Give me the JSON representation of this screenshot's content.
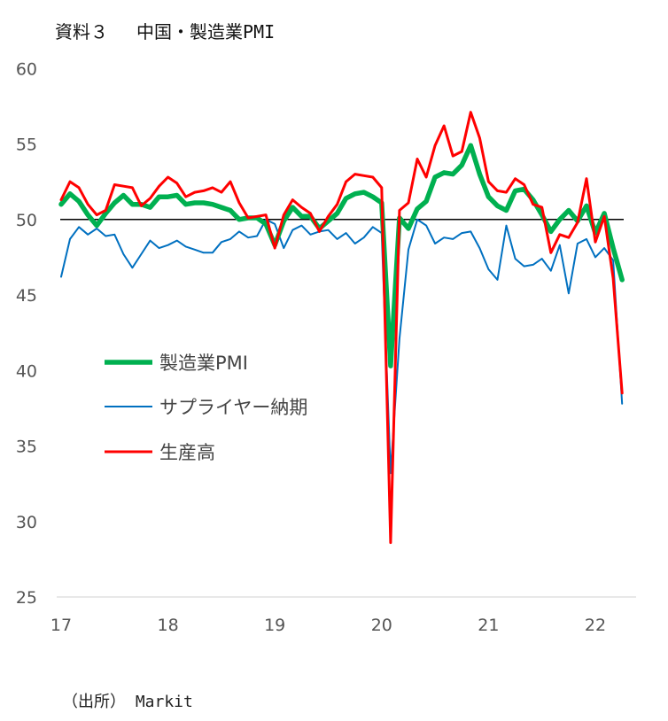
{
  "title": "資料３　 中国・製造業PMI",
  "source": "（出所） Markit",
  "colors": {
    "pmi": "#00b050",
    "supplier": "#0070c0",
    "output": "#ff0000",
    "ref": "#000000"
  },
  "chart_data": {
    "type": "line",
    "title": "資料３　 中国・製造業PMI",
    "ylim": [
      25,
      60
    ],
    "yticks": [
      "25",
      "30",
      "35",
      "40",
      "45",
      "50",
      "55",
      "60"
    ],
    "xtick_labels": [
      "17",
      "18",
      "19",
      "20",
      "21",
      "22"
    ],
    "x_start": "2017-01",
    "reference_line": 50,
    "legend_position": "center-left",
    "grid": false,
    "series": [
      {
        "name": "製造業PMI",
        "values": [
          51.0,
          51.7,
          51.2,
          50.3,
          49.6,
          50.4,
          51.1,
          51.6,
          51.0,
          51.0,
          50.8,
          51.5,
          51.5,
          51.6,
          51.0,
          51.1,
          51.1,
          51.0,
          50.8,
          50.6,
          50.0,
          50.1,
          50.1,
          49.7,
          48.3,
          49.9,
          50.8,
          50.2,
          50.2,
          49.4,
          49.9,
          50.4,
          51.4,
          51.7,
          51.8,
          51.5,
          51.1,
          40.3,
          50.1,
          49.4,
          50.7,
          51.2,
          52.8,
          53.1,
          53.0,
          53.6,
          54.9,
          53.0,
          51.5,
          50.9,
          50.6,
          51.9,
          52.0,
          51.3,
          50.3,
          49.2,
          50.0,
          50.6,
          49.9,
          50.9,
          49.1,
          50.4,
          48.1,
          46.0
        ]
      },
      {
        "name": "サプライヤー納期",
        "values": [
          46.2,
          48.7,
          49.5,
          49.0,
          49.4,
          48.9,
          49.0,
          47.7,
          46.8,
          47.7,
          48.6,
          48.1,
          48.3,
          48.6,
          48.2,
          48.0,
          47.8,
          47.8,
          48.5,
          48.7,
          49.2,
          48.8,
          48.9,
          50.0,
          49.7,
          48.1,
          49.3,
          49.6,
          49.0,
          49.2,
          49.3,
          48.7,
          49.1,
          48.4,
          48.8,
          49.5,
          49.1,
          33.2,
          42.1,
          48.0,
          50.0,
          49.6,
          48.4,
          48.8,
          48.7,
          49.1,
          49.2,
          48.1,
          46.7,
          46.0,
          49.6,
          47.4,
          46.9,
          47.0,
          47.4,
          46.6,
          48.3,
          45.1,
          48.4,
          48.7,
          47.5,
          48.1,
          47.3,
          37.8
        ]
      },
      {
        "name": "生産高",
        "values": [
          51.3,
          52.5,
          52.1,
          51.0,
          50.3,
          50.6,
          52.3,
          52.2,
          52.1,
          50.9,
          51.4,
          52.2,
          52.8,
          52.4,
          51.5,
          51.8,
          51.9,
          52.1,
          51.8,
          52.5,
          51.1,
          50.1,
          50.2,
          50.3,
          48.1,
          50.3,
          51.3,
          50.8,
          50.4,
          49.2,
          50.2,
          51.0,
          52.5,
          53.0,
          52.9,
          52.8,
          52.1,
          28.6,
          50.6,
          51.1,
          54.0,
          52.8,
          54.9,
          56.2,
          54.2,
          54.5,
          57.1,
          55.4,
          52.5,
          51.9,
          51.8,
          52.7,
          52.3,
          51.0,
          50.8,
          47.8,
          49.0,
          48.8,
          49.8,
          52.7,
          48.5,
          50.2,
          46.1,
          38.5
        ]
      }
    ]
  }
}
